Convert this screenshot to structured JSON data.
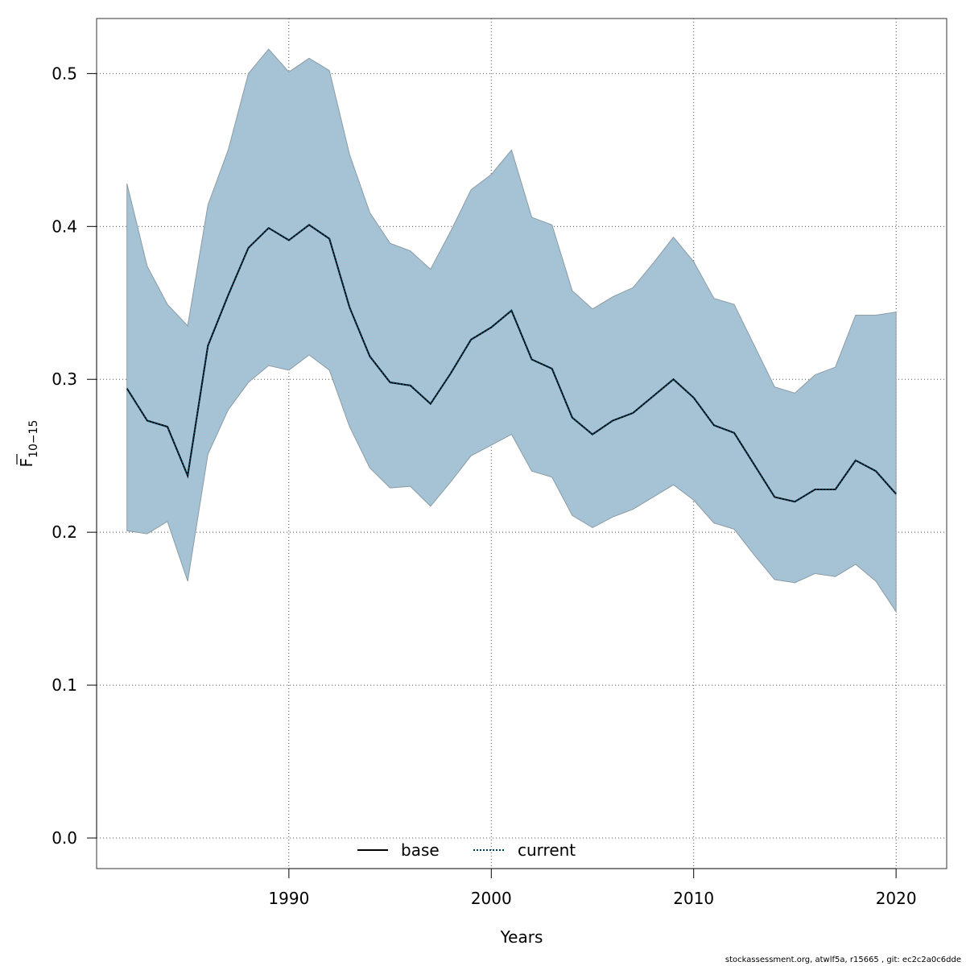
{
  "chart_data": {
    "type": "area",
    "xlabel": "Years",
    "ylabel": "F",
    "ylabel_sub": "10−15",
    "xlim": [
      1980.5,
      2022.5
    ],
    "ylim": [
      -0.02,
      0.536
    ],
    "xticks": [
      1990,
      2000,
      2010,
      2020
    ],
    "yticks": [
      0.0,
      0.1,
      0.2,
      0.3,
      0.4,
      0.5
    ],
    "ytick_labels": [
      "0.0",
      "0.1",
      "0.2",
      "0.3",
      "0.4",
      "0.5"
    ],
    "grid": true,
    "legend_position": "bottom-center",
    "x": [
      1982,
      1983,
      1984,
      1985,
      1986,
      1987,
      1988,
      1989,
      1990,
      1991,
      1992,
      1993,
      1994,
      1995,
      1996,
      1997,
      1998,
      1999,
      2000,
      2001,
      2002,
      2003,
      2004,
      2005,
      2006,
      2007,
      2008,
      2009,
      2010,
      2011,
      2012,
      2013,
      2014,
      2015,
      2016,
      2017,
      2018,
      2019,
      2020
    ],
    "band": {
      "upper": [
        0.428,
        0.374,
        0.349,
        0.335,
        0.414,
        0.45,
        0.5,
        0.516,
        0.501,
        0.51,
        0.502,
        0.447,
        0.409,
        0.389,
        0.384,
        0.372,
        0.397,
        0.424,
        0.434,
        0.45,
        0.406,
        0.401,
        0.358,
        0.346,
        0.354,
        0.36,
        0.376,
        0.393,
        0.377,
        0.353,
        0.349,
        0.322,
        0.295,
        0.291,
        0.303,
        0.308,
        0.342,
        0.342,
        0.344
      ],
      "lower": [
        0.201,
        0.199,
        0.207,
        0.168,
        0.251,
        0.28,
        0.298,
        0.309,
        0.306,
        0.316,
        0.306,
        0.269,
        0.242,
        0.229,
        0.23,
        0.217,
        0.233,
        0.25,
        0.257,
        0.264,
        0.24,
        0.236,
        0.211,
        0.203,
        0.21,
        0.215,
        0.223,
        0.231,
        0.221,
        0.206,
        0.202,
        0.185,
        0.169,
        0.167,
        0.173,
        0.171,
        0.179,
        0.168,
        0.148
      ],
      "color": "#a5c3d4",
      "edge_color": "#8a9ba6"
    },
    "series": [
      {
        "name": "base",
        "style": "solid",
        "color": "#000000",
        "values": [
          0.294,
          0.273,
          0.269,
          0.237,
          0.322,
          0.355,
          0.386,
          0.399,
          0.391,
          0.401,
          0.392,
          0.347,
          0.315,
          0.298,
          0.296,
          0.284,
          0.304,
          0.326,
          0.334,
          0.345,
          0.313,
          0.307,
          0.275,
          0.264,
          0.273,
          0.278,
          0.289,
          0.3,
          0.288,
          0.27,
          0.265,
          0.244,
          0.223,
          0.22,
          0.228,
          0.228,
          0.247,
          0.24,
          0.225
        ]
      },
      {
        "name": "current",
        "style": "dotted",
        "color": "#003f5c",
        "values": [
          0.294,
          0.273,
          0.269,
          0.237,
          0.322,
          0.355,
          0.386,
          0.399,
          0.391,
          0.401,
          0.392,
          0.347,
          0.315,
          0.298,
          0.296,
          0.284,
          0.304,
          0.326,
          0.334,
          0.345,
          0.313,
          0.307,
          0.275,
          0.264,
          0.273,
          0.278,
          0.289,
          0.3,
          0.288,
          0.27,
          0.265,
          0.244,
          0.223,
          0.22,
          0.228,
          0.228,
          0.247,
          0.24,
          0.225
        ]
      }
    ]
  },
  "footer": "stockassessment.org, atwlf5a, r15665 , git: ec2c2a0c6dde"
}
